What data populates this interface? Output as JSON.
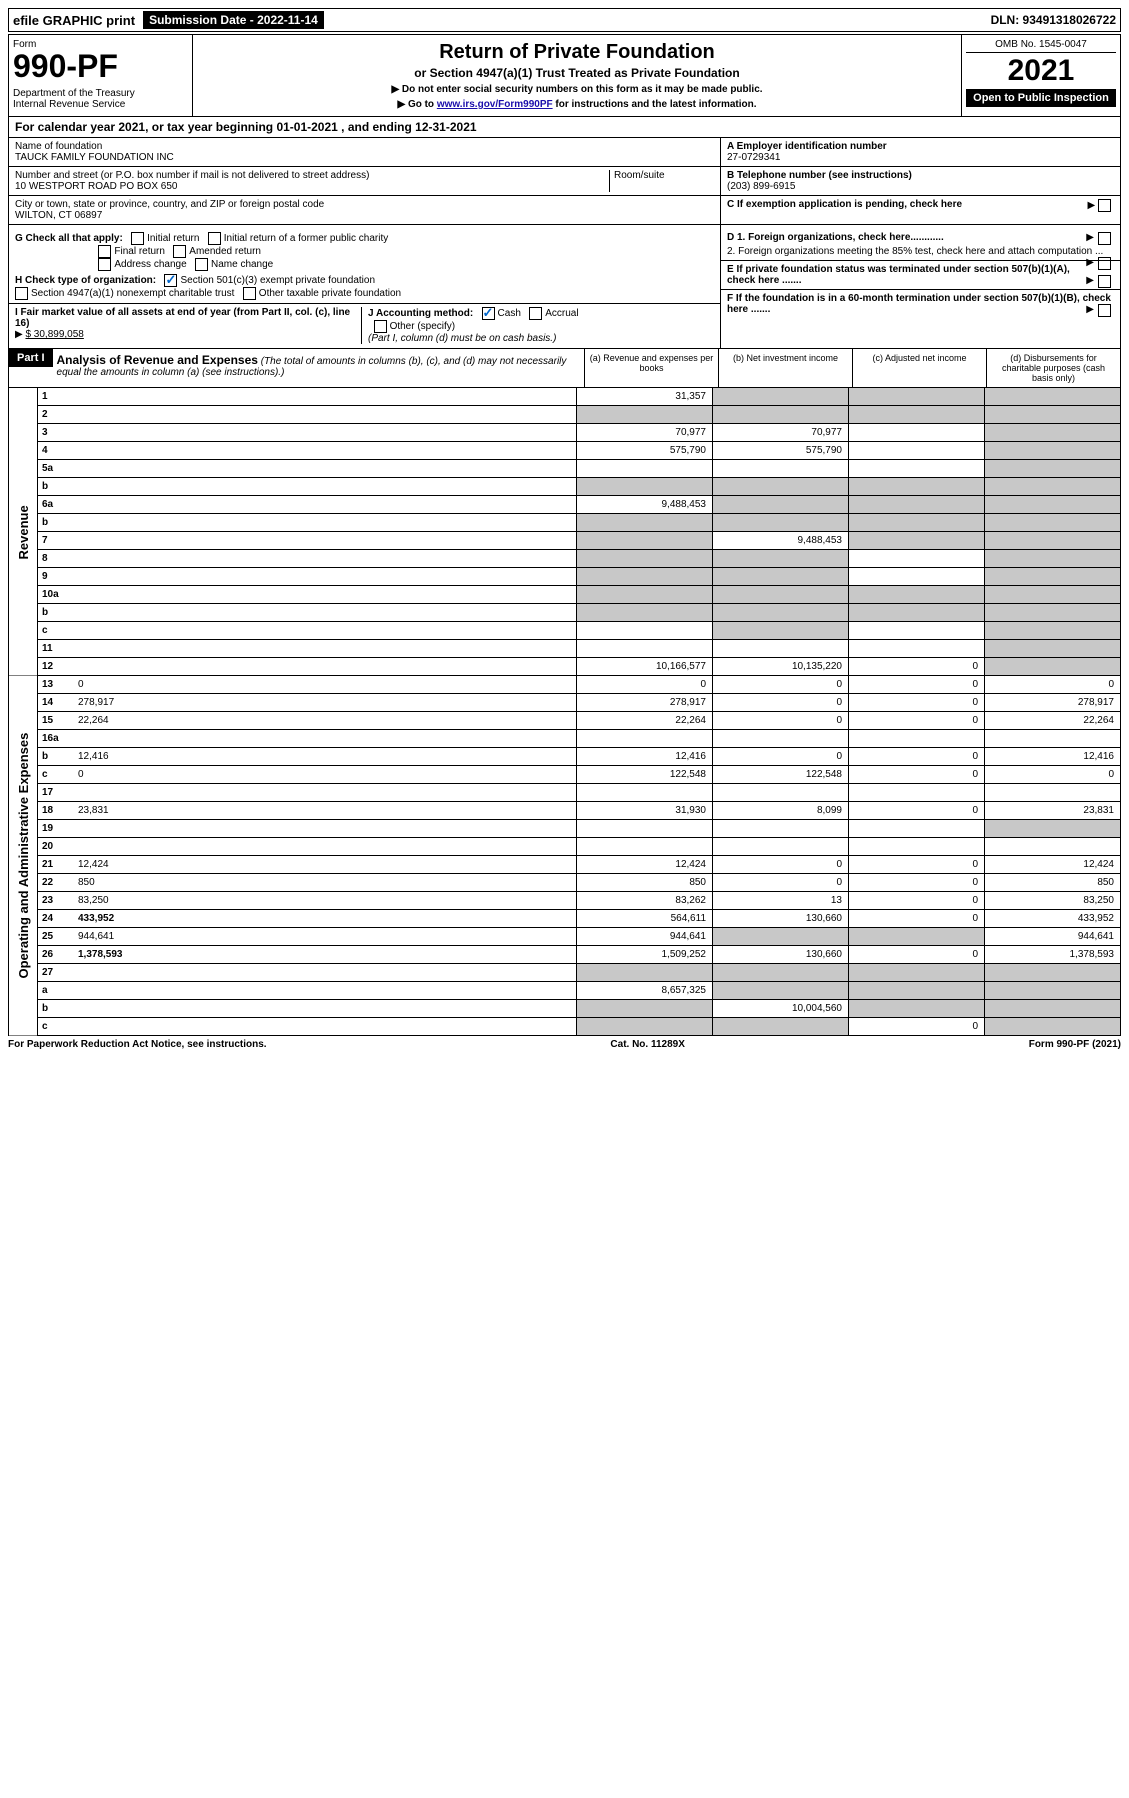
{
  "topbar": {
    "efile": "efile GRAPHIC print",
    "submission": "Submission Date - 2022-11-14",
    "dln": "DLN: 93491318026722"
  },
  "header": {
    "form_label": "Form",
    "form_no": "990-PF",
    "dept": "Department of the Treasury",
    "irs": "Internal Revenue Service",
    "title": "Return of Private Foundation",
    "subtitle": "or Section 4947(a)(1) Trust Treated as Private Foundation",
    "instr1": "▶ Do not enter social security numbers on this form as it may be made public.",
    "instr2_pre": "▶ Go to ",
    "instr2_link": "www.irs.gov/Form990PF",
    "instr2_post": " for instructions and the latest information.",
    "omb": "OMB No. 1545-0047",
    "year": "2021",
    "open": "Open to Public Inspection"
  },
  "calyear": "For calendar year 2021, or tax year beginning 01-01-2021                           , and ending 12-31-2021",
  "info": {
    "name_label": "Name of foundation",
    "name": "TAUCK FAMILY FOUNDATION INC",
    "addr_label": "Number and street (or P.O. box number if mail is not delivered to street address)",
    "addr": "10 WESTPORT ROAD PO BOX 650",
    "room_label": "Room/suite",
    "city_label": "City or town, state or province, country, and ZIP or foreign postal code",
    "city": "WILTON, CT  06897",
    "ein_label": "A Employer identification number",
    "ein": "27-0729341",
    "phone_label": "B Telephone number (see instructions)",
    "phone": "(203) 899-6915",
    "c_label": "C If exemption application is pending, check here"
  },
  "checks": {
    "g_label": "G Check all that apply:",
    "g_items": [
      "Initial return",
      "Initial return of a former public charity",
      "Final return",
      "Amended return",
      "Address change",
      "Name change"
    ],
    "h_label": "H Check type of organization:",
    "h1": "Section 501(c)(3) exempt private foundation",
    "h2": "Section 4947(a)(1) nonexempt charitable trust",
    "h3": "Other taxable private foundation",
    "i_label": "I Fair market value of all assets at end of year (from Part II, col. (c), line 16)",
    "i_val": "$  30,899,058",
    "j_label": "J Accounting method:",
    "j_cash": "Cash",
    "j_accrual": "Accrual",
    "j_other": "Other (specify)",
    "j_note": "(Part I, column (d) must be on cash basis.)",
    "d1": "D 1. Foreign organizations, check here............",
    "d2": "2. Foreign organizations meeting the 85% test, check here and attach computation ...",
    "e": "E  If private foundation status was terminated under section 507(b)(1)(A), check here .......",
    "f": "F  If the foundation is in a 60-month termination under section 507(b)(1)(B), check here .......",
    "arrow": "▶"
  },
  "part1": {
    "label": "Part I",
    "title": "Analysis of Revenue and Expenses",
    "subtitle": " (The total of amounts in columns (b), (c), and (d) may not necessarily equal the amounts in column (a) (see instructions).)",
    "col_a": "(a)   Revenue and expenses per books",
    "col_b": "(b)   Net investment income",
    "col_c": "(c)   Adjusted net income",
    "col_d": "(d)   Disbursements for charitable purposes (cash basis only)"
  },
  "side": {
    "revenue": "Revenue",
    "expenses": "Operating and Administrative Expenses"
  },
  "rows": [
    {
      "n": "1",
      "d": "",
      "a": "31,357",
      "b": "",
      "c": "",
      "shade_b": true,
      "shade_c": true,
      "shade_d": true
    },
    {
      "n": "2",
      "d": "",
      "a": "",
      "b": "",
      "c": "",
      "shade_a": true,
      "shade_b": true,
      "shade_c": true,
      "shade_d": true
    },
    {
      "n": "3",
      "d": "",
      "a": "70,977",
      "b": "70,977",
      "c": "",
      "shade_d": true
    },
    {
      "n": "4",
      "d": "",
      "a": "575,790",
      "b": "575,790",
      "c": "",
      "shade_d": true
    },
    {
      "n": "5a",
      "d": "",
      "a": "",
      "b": "",
      "c": "",
      "shade_d": true
    },
    {
      "n": "b",
      "d": "",
      "a": "",
      "b": "",
      "c": "",
      "shade_a": true,
      "shade_b": true,
      "shade_c": true,
      "shade_d": true
    },
    {
      "n": "6a",
      "d": "",
      "a": "9,488,453",
      "b": "",
      "c": "",
      "shade_b": true,
      "shade_c": true,
      "shade_d": true
    },
    {
      "n": "b",
      "d": "",
      "a": "",
      "b": "",
      "c": "",
      "shade_a": true,
      "shade_b": true,
      "shade_c": true,
      "shade_d": true
    },
    {
      "n": "7",
      "d": "",
      "a": "",
      "b": "9,488,453",
      "c": "",
      "shade_a": true,
      "shade_c": true,
      "shade_d": true
    },
    {
      "n": "8",
      "d": "",
      "a": "",
      "b": "",
      "c": "",
      "shade_a": true,
      "shade_b": true,
      "shade_d": true
    },
    {
      "n": "9",
      "d": "",
      "a": "",
      "b": "",
      "c": "",
      "shade_a": true,
      "shade_b": true,
      "shade_d": true
    },
    {
      "n": "10a",
      "d": "",
      "a": "",
      "b": "",
      "c": "",
      "shade_a": true,
      "shade_b": true,
      "shade_c": true,
      "shade_d": true
    },
    {
      "n": "b",
      "d": "",
      "a": "",
      "b": "",
      "c": "",
      "shade_a": true,
      "shade_b": true,
      "shade_c": true,
      "shade_d": true
    },
    {
      "n": "c",
      "d": "",
      "a": "",
      "b": "",
      "c": "",
      "shade_b": true,
      "shade_d": true
    },
    {
      "n": "11",
      "d": "",
      "a": "",
      "b": "",
      "c": "",
      "shade_d": true
    },
    {
      "n": "12",
      "d": "",
      "a": "10,166,577",
      "b": "10,135,220",
      "c": "0",
      "bold": true,
      "shade_d": true
    }
  ],
  "exp_rows": [
    {
      "n": "13",
      "d": "0",
      "a": "0",
      "b": "0",
      "c": "0"
    },
    {
      "n": "14",
      "d": "278,917",
      "a": "278,917",
      "b": "0",
      "c": "0"
    },
    {
      "n": "15",
      "d": "22,264",
      "a": "22,264",
      "b": "0",
      "c": "0"
    },
    {
      "n": "16a",
      "d": "",
      "a": "",
      "b": "",
      "c": ""
    },
    {
      "n": "b",
      "d": "12,416",
      "a": "12,416",
      "b": "0",
      "c": "0"
    },
    {
      "n": "c",
      "d": "0",
      "a": "122,548",
      "b": "122,548",
      "c": "0"
    },
    {
      "n": "17",
      "d": "",
      "a": "",
      "b": "",
      "c": ""
    },
    {
      "n": "18",
      "d": "23,831",
      "a": "31,930",
      "b": "8,099",
      "c": "0"
    },
    {
      "n": "19",
      "d": "",
      "a": "",
      "b": "",
      "c": "",
      "shade_d": true
    },
    {
      "n": "20",
      "d": "",
      "a": "",
      "b": "",
      "c": ""
    },
    {
      "n": "21",
      "d": "12,424",
      "a": "12,424",
      "b": "0",
      "c": "0"
    },
    {
      "n": "22",
      "d": "850",
      "a": "850",
      "b": "0",
      "c": "0"
    },
    {
      "n": "23",
      "d": "83,250",
      "a": "83,262",
      "b": "13",
      "c": "0"
    },
    {
      "n": "24",
      "d": "433,952",
      "a": "564,611",
      "b": "130,660",
      "c": "0",
      "bold": true
    },
    {
      "n": "25",
      "d": "944,641",
      "a": "944,641",
      "b": "",
      "c": "",
      "shade_b": true,
      "shade_c": true
    },
    {
      "n": "26",
      "d": "1,378,593",
      "a": "1,509,252",
      "b": "130,660",
      "c": "0",
      "bold": true
    },
    {
      "n": "27",
      "d": "",
      "a": "",
      "b": "",
      "c": "",
      "shade_a": true,
      "shade_b": true,
      "shade_c": true,
      "shade_d": true
    },
    {
      "n": "a",
      "d": "",
      "a": "8,657,325",
      "b": "",
      "c": "",
      "bold": true,
      "shade_b": true,
      "shade_c": true,
      "shade_d": true
    },
    {
      "n": "b",
      "d": "",
      "a": "",
      "b": "10,004,560",
      "c": "",
      "bold": true,
      "shade_a": true,
      "shade_c": true,
      "shade_d": true
    },
    {
      "n": "c",
      "d": "",
      "a": "",
      "b": "",
      "c": "0",
      "bold": true,
      "shade_a": true,
      "shade_b": true,
      "shade_d": true
    }
  ],
  "footer": {
    "left": "For Paperwork Reduction Act Notice, see instructions.",
    "center": "Cat. No. 11289X",
    "right": "Form 990-PF (2021)"
  }
}
